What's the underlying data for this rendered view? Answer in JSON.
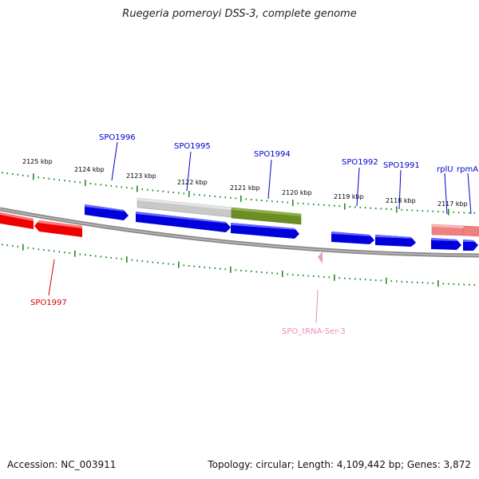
{
  "title": "Ruegeria pomeroyi DSS-3, complete genome",
  "footer": {
    "accession": "Accession: NC_003911",
    "summary": "Topology: circular; Length: 4,109,442 bp; Genes: 3,872"
  },
  "colors": {
    "forward_gene": "#0000dd",
    "reverse_gene": "#ee0000",
    "selected_gene": "#6b8e23",
    "cluster": "#c8c8c8",
    "rna_feature": "#f08080",
    "trna": "#ee99cc",
    "ticks": "#228b22",
    "backbone": "#888888",
    "label_forward": "#0000cc",
    "label_reverse": "#dd0000",
    "label_trna": "#ee88bb"
  },
  "kbp_labels": [
    "2125 kbp",
    "2124 kbp",
    "2123 kbp",
    "2122 kbp",
    "2121 kbp",
    "2120 kbp",
    "2119 kbp",
    "2118 kbp",
    "2117 kbp"
  ],
  "gene_labels": [
    "SPO1996",
    "SPO1995",
    "SPO1994",
    "SPO1992",
    "SPO1991",
    "rplU",
    "rpmA",
    "SPO1997",
    "SPO_tRNA-Ser-3"
  ]
}
